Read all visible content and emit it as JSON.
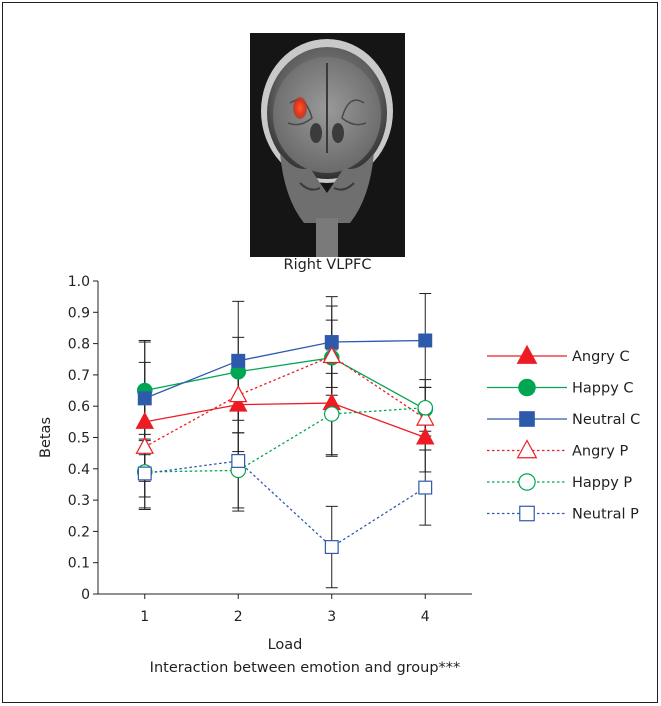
{
  "image_caption": "Right VLPFC",
  "caption": "Interaction between emotion and group***",
  "chart_data": {
    "type": "line",
    "xlabel": "Load",
    "ylabel": "Betas",
    "x": [
      1,
      2,
      3,
      4
    ],
    "x_ticks": [
      "1",
      "2",
      "3",
      "4"
    ],
    "ylim": [
      0,
      1.0
    ],
    "y_ticks": [
      "0",
      "0.1",
      "0.2",
      "0.3",
      "0.4",
      "0.5",
      "0.6",
      "0.7",
      "0.8",
      "0.9",
      "1.0"
    ],
    "grid": false,
    "legend_position": "right",
    "series": [
      {
        "name": "Angry C",
        "color": "#ed1c24",
        "marker": "triangle",
        "filled": true,
        "dash": false,
        "values": [
          0.55,
          0.605,
          0.61,
          0.5
        ],
        "err": [
          0.19,
          0.15,
          0.17,
          0.11
        ]
      },
      {
        "name": "Happy C",
        "color": "#00a651",
        "marker": "circle",
        "filled": true,
        "dash": false,
        "values": [
          0.65,
          0.71,
          0.755,
          0.59
        ],
        "err": [
          0.16,
          0.11,
          0.12,
          0.07
        ]
      },
      {
        "name": "Neutral C",
        "color": "#2e5aac",
        "marker": "square",
        "filled": true,
        "dash": false,
        "values": [
          0.625,
          0.745,
          0.805,
          0.81
        ],
        "err": [
          0.18,
          0.19,
          0.145,
          0.15
        ]
      },
      {
        "name": "Angry P",
        "color": "#ed1c24",
        "marker": "triangle",
        "filled": false,
        "dash": true,
        "values": [
          0.47,
          0.635,
          0.76,
          0.56
        ],
        "err": [
          0.16,
          0.12,
          0.16,
          0.1
        ]
      },
      {
        "name": "Happy P",
        "color": "#00a651",
        "marker": "circle",
        "filled": false,
        "dash": true,
        "values": [
          0.39,
          0.395,
          0.575,
          0.595
        ],
        "err": [
          0.12,
          0.12,
          0.13,
          0.09
        ]
      },
      {
        "name": "Neutral P",
        "color": "#2e5aac",
        "marker": "square",
        "filled": false,
        "dash": true,
        "values": [
          0.385,
          0.425,
          0.15,
          0.34
        ],
        "err": [
          0.11,
          0.16,
          0.13,
          0.12
        ]
      }
    ]
  }
}
